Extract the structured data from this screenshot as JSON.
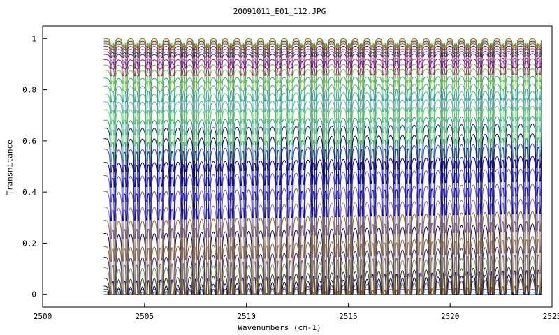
{
  "chart_data": {
    "type": "line",
    "title": "20091011_E01_112.JPG",
    "xlabel": "Wavenumbers (cm-1)",
    "ylabel": "Transmitance",
    "xlim": [
      2500,
      2525
    ],
    "ylim": [
      -0.05,
      1.05
    ],
    "x_ticks": [
      "2500",
      "2505",
      "2510",
      "2515",
      "2520",
      "2525"
    ],
    "y_ticks": [
      "0",
      "0.2",
      "0.4",
      "0.6",
      "0.8",
      "1"
    ],
    "grid": false,
    "legend": "none",
    "x_range_data": [
      2503,
      2524.5
    ],
    "series_note": "",
    "series_levels": [
      0.0,
      0.01,
      0.02,
      0.04,
      0.06,
      0.09,
      0.13,
      0.17,
      0.21,
      0.26,
      0.31,
      0.36,
      0.42,
      0.48,
      0.53,
      0.58,
      0.62,
      0.66,
      0.69,
      0.73,
      0.76,
      0.79,
      0.82,
      0.85,
      0.88,
      0.9,
      0.92,
      0.94,
      0.95,
      0.96,
      0.97,
      0.98,
      0.985,
      0.99,
      0.995,
      1.0
    ],
    "series_colors": [
      "#2c8f3c",
      "#7fa0ff",
      "#4a4a8a",
      "#806020",
      "#000080",
      "#333333",
      "#6a9a3a",
      "#2a2a8a",
      "#8a6a20",
      "#000080",
      "#8a6a20",
      "#8a7a8a",
      "#806040",
      "#6a5a9a",
      "#0000c0",
      "#3a3ad0",
      "#000080",
      "#1a1a5a",
      "#3a8a8a",
      "#6ad06a",
      "#5fb0a0",
      "#50c060",
      "#5ea0b0",
      "#2aa080",
      "#70c040",
      "#60b060",
      "#8a2a5a",
      "#8a006a",
      "#5a5a9a",
      "#c060a0",
      "#2a2a2a",
      "#606060",
      "#a06060",
      "#404040",
      "#ff6a40",
      "#30a030"
    ]
  }
}
